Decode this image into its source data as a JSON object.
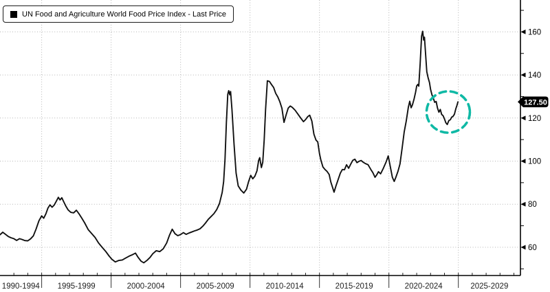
{
  "legend": {
    "label": "UN Food and Agriculture World Food Price Index - Last Price",
    "marker_color": "#000000"
  },
  "y_axis": {
    "major_ticks": [
      160,
      140,
      120,
      100,
      80,
      60
    ],
    "minor_ticks": [
      170,
      150,
      130,
      110,
      90,
      70,
      50
    ],
    "last_price_label": "127.50",
    "flag_bg": "#000000",
    "flag_text_color": "#ffffff"
  },
  "x_axis": {
    "block_labels": [
      "1990-1994",
      "1995-1999",
      "2000-2004",
      "2005-2009",
      "2010-2014",
      "2015-2019",
      "2020-2024",
      "2025-2029"
    ],
    "block_start_years": [
      1990,
      1995,
      2000,
      2005,
      2010,
      2015,
      2020,
      2025
    ]
  },
  "annotation": {
    "type": "dashed-circle",
    "color": "#0FB9A5",
    "center_year": 2024.27,
    "center_value": 122.8,
    "radius_years": 1.56,
    "radius_points": 9.6
  },
  "chart_data": {
    "type": "line",
    "title": "UN Food and Agriculture World Food Price Index - Last Price",
    "xlabel": "",
    "ylabel": "",
    "xlim": [
      1992.0,
      2029.47
    ],
    "ylim": [
      46.9,
      174.8
    ],
    "grid": "dotted",
    "legend_position": "top-left",
    "line_color": "#101010",
    "grid_color": "#b3b3b3",
    "last_price": 127.5,
    "series": [
      {
        "name": "UN Food and Agriculture World Food Price Index - Last Price",
        "points": [
          [
            1992.0,
            65.8
          ],
          [
            1992.2,
            67.0
          ],
          [
            1992.4,
            66.0
          ],
          [
            1992.6,
            65.0
          ],
          [
            1992.8,
            64.4
          ],
          [
            1993.0,
            64.0
          ],
          [
            1993.2,
            63.2
          ],
          [
            1993.4,
            64.0
          ],
          [
            1993.6,
            63.6
          ],
          [
            1993.8,
            63.1
          ],
          [
            1994.0,
            63.0
          ],
          [
            1994.2,
            63.9
          ],
          [
            1994.4,
            65.3
          ],
          [
            1994.6,
            68.5
          ],
          [
            1994.8,
            72.3
          ],
          [
            1995.0,
            74.6
          ],
          [
            1995.15,
            73.5
          ],
          [
            1995.3,
            75.5
          ],
          [
            1995.45,
            78.2
          ],
          [
            1995.6,
            79.7
          ],
          [
            1995.75,
            78.6
          ],
          [
            1995.9,
            79.6
          ],
          [
            1996.05,
            81.3
          ],
          [
            1996.2,
            83.2
          ],
          [
            1996.32,
            82.0
          ],
          [
            1996.45,
            83.0
          ],
          [
            1996.6,
            81.0
          ],
          [
            1996.75,
            79.0
          ],
          [
            1996.9,
            77.4
          ],
          [
            1997.1,
            76.2
          ],
          [
            1997.3,
            76.0
          ],
          [
            1997.5,
            77.2
          ],
          [
            1997.7,
            75.4
          ],
          [
            1997.9,
            73.4
          ],
          [
            1998.1,
            71.3
          ],
          [
            1998.35,
            68.2
          ],
          [
            1998.6,
            66.4
          ],
          [
            1998.85,
            64.5
          ],
          [
            1999.1,
            62.0
          ],
          [
            1999.35,
            60.0
          ],
          [
            1999.6,
            58.2
          ],
          [
            1999.85,
            56.0
          ],
          [
            2000.05,
            54.5
          ],
          [
            2000.3,
            53.2
          ],
          [
            2000.55,
            53.9
          ],
          [
            2000.8,
            54.1
          ],
          [
            2001.05,
            55.0
          ],
          [
            2001.3,
            55.9
          ],
          [
            2001.55,
            56.6
          ],
          [
            2001.75,
            57.3
          ],
          [
            2001.95,
            55.3
          ],
          [
            2002.15,
            53.6
          ],
          [
            2002.35,
            52.8
          ],
          [
            2002.6,
            54.0
          ],
          [
            2002.8,
            55.3
          ],
          [
            2003.0,
            57.0
          ],
          [
            2003.25,
            58.4
          ],
          [
            2003.5,
            58.0
          ],
          [
            2003.75,
            59.3
          ],
          [
            2004.0,
            62.0
          ],
          [
            2004.2,
            65.6
          ],
          [
            2004.4,
            68.4
          ],
          [
            2004.6,
            66.3
          ],
          [
            2004.8,
            65.4
          ],
          [
            2005.0,
            65.9
          ],
          [
            2005.2,
            66.8
          ],
          [
            2005.4,
            66.0
          ],
          [
            2005.6,
            66.6
          ],
          [
            2005.8,
            67.1
          ],
          [
            2006.0,
            67.6
          ],
          [
            2006.2,
            68.0
          ],
          [
            2006.4,
            68.6
          ],
          [
            2006.6,
            69.8
          ],
          [
            2006.8,
            71.3
          ],
          [
            2007.0,
            73.0
          ],
          [
            2007.2,
            74.3
          ],
          [
            2007.4,
            75.6
          ],
          [
            2007.6,
            77.5
          ],
          [
            2007.8,
            80.3
          ],
          [
            2008.0,
            85.5
          ],
          [
            2008.1,
            90.5
          ],
          [
            2008.2,
            101.0
          ],
          [
            2008.3,
            118.0
          ],
          [
            2008.4,
            131.0
          ],
          [
            2008.47,
            132.7
          ],
          [
            2008.54,
            130.8
          ],
          [
            2008.6,
            132.3
          ],
          [
            2008.7,
            124.0
          ],
          [
            2008.85,
            108.0
          ],
          [
            2009.0,
            94.5
          ],
          [
            2009.15,
            88.5
          ],
          [
            2009.35,
            86.5
          ],
          [
            2009.55,
            85.2
          ],
          [
            2009.75,
            87.0
          ],
          [
            2009.9,
            90.5
          ],
          [
            2010.05,
            93.4
          ],
          [
            2010.2,
            91.8
          ],
          [
            2010.35,
            93.0
          ],
          [
            2010.5,
            95.5
          ],
          [
            2010.62,
            100.3
          ],
          [
            2010.7,
            101.6
          ],
          [
            2010.82,
            97.0
          ],
          [
            2010.92,
            99.5
          ],
          [
            2011.02,
            110.0
          ],
          [
            2011.12,
            124.0
          ],
          [
            2011.25,
            137.3
          ],
          [
            2011.4,
            137.0
          ],
          [
            2011.55,
            135.5
          ],
          [
            2011.7,
            134.2
          ],
          [
            2011.85,
            131.5
          ],
          [
            2012.0,
            129.8
          ],
          [
            2012.15,
            127.5
          ],
          [
            2012.3,
            124.5
          ],
          [
            2012.45,
            118.0
          ],
          [
            2012.6,
            121.5
          ],
          [
            2012.75,
            124.6
          ],
          [
            2012.9,
            125.6
          ],
          [
            2013.05,
            124.9
          ],
          [
            2013.25,
            123.6
          ],
          [
            2013.45,
            121.8
          ],
          [
            2013.65,
            120.0
          ],
          [
            2013.85,
            118.3
          ],
          [
            2014.0,
            119.3
          ],
          [
            2014.15,
            120.6
          ],
          [
            2014.3,
            121.3
          ],
          [
            2014.45,
            118.6
          ],
          [
            2014.6,
            112.5
          ],
          [
            2014.75,
            109.8
          ],
          [
            2014.88,
            108.9
          ],
          [
            2015.0,
            103.5
          ],
          [
            2015.1,
            100.5
          ],
          [
            2015.25,
            97.3
          ],
          [
            2015.4,
            96.1
          ],
          [
            2015.55,
            95.2
          ],
          [
            2015.7,
            93.8
          ],
          [
            2015.82,
            90.3
          ],
          [
            2015.93,
            88.0
          ],
          [
            2016.05,
            85.6
          ],
          [
            2016.2,
            88.7
          ],
          [
            2016.35,
            91.5
          ],
          [
            2016.5,
            94.4
          ],
          [
            2016.65,
            96.1
          ],
          [
            2016.8,
            96.0
          ],
          [
            2016.95,
            98.3
          ],
          [
            2017.1,
            96.7
          ],
          [
            2017.25,
            98.6
          ],
          [
            2017.4,
            100.4
          ],
          [
            2017.55,
            100.9
          ],
          [
            2017.7,
            99.3
          ],
          [
            2017.85,
            99.9
          ],
          [
            2018.0,
            100.3
          ],
          [
            2018.15,
            99.5
          ],
          [
            2018.3,
            98.9
          ],
          [
            2018.5,
            98.3
          ],
          [
            2018.7,
            96.1
          ],
          [
            2018.85,
            94.6
          ],
          [
            2019.0,
            92.5
          ],
          [
            2019.12,
            93.6
          ],
          [
            2019.25,
            95.1
          ],
          [
            2019.4,
            94.1
          ],
          [
            2019.6,
            96.7
          ],
          [
            2019.8,
            99.6
          ],
          [
            2019.95,
            102.4
          ],
          [
            2020.1,
            97.5
          ],
          [
            2020.25,
            92.5
          ],
          [
            2020.38,
            90.6
          ],
          [
            2020.5,
            92.5
          ],
          [
            2020.65,
            95.2
          ],
          [
            2020.8,
            98.7
          ],
          [
            2020.95,
            106.0
          ],
          [
            2021.1,
            113.5
          ],
          [
            2021.25,
            118.6
          ],
          [
            2021.4,
            125.1
          ],
          [
            2021.5,
            127.8
          ],
          [
            2021.6,
            124.8
          ],
          [
            2021.7,
            126.2
          ],
          [
            2021.82,
            129.0
          ],
          [
            2021.92,
            132.0
          ],
          [
            2022.0,
            134.9
          ],
          [
            2022.08,
            135.6
          ],
          [
            2022.15,
            134.8
          ],
          [
            2022.25,
            145.0
          ],
          [
            2022.35,
            158.0
          ],
          [
            2022.43,
            160.3
          ],
          [
            2022.5,
            156.2
          ],
          [
            2022.56,
            157.5
          ],
          [
            2022.65,
            149.0
          ],
          [
            2022.73,
            141.5
          ],
          [
            2022.82,
            138.7
          ],
          [
            2022.92,
            136.5
          ],
          [
            2023.0,
            133.3
          ],
          [
            2023.1,
            130.8
          ],
          [
            2023.2,
            129.2
          ],
          [
            2023.3,
            127.3
          ],
          [
            2023.4,
            127.7
          ],
          [
            2023.5,
            124.6
          ],
          [
            2023.6,
            122.7
          ],
          [
            2023.7,
            124.0
          ],
          [
            2023.8,
            121.7
          ],
          [
            2023.9,
            121.1
          ],
          [
            2024.0,
            119.6
          ],
          [
            2024.1,
            117.8
          ],
          [
            2024.2,
            117.0
          ],
          [
            2024.32,
            118.9
          ],
          [
            2024.42,
            119.2
          ],
          [
            2024.52,
            120.4
          ],
          [
            2024.62,
            120.8
          ],
          [
            2024.72,
            121.8
          ],
          [
            2024.82,
            124.4
          ],
          [
            2024.9,
            125.9
          ],
          [
            2024.97,
            127.5
          ]
        ]
      }
    ]
  }
}
